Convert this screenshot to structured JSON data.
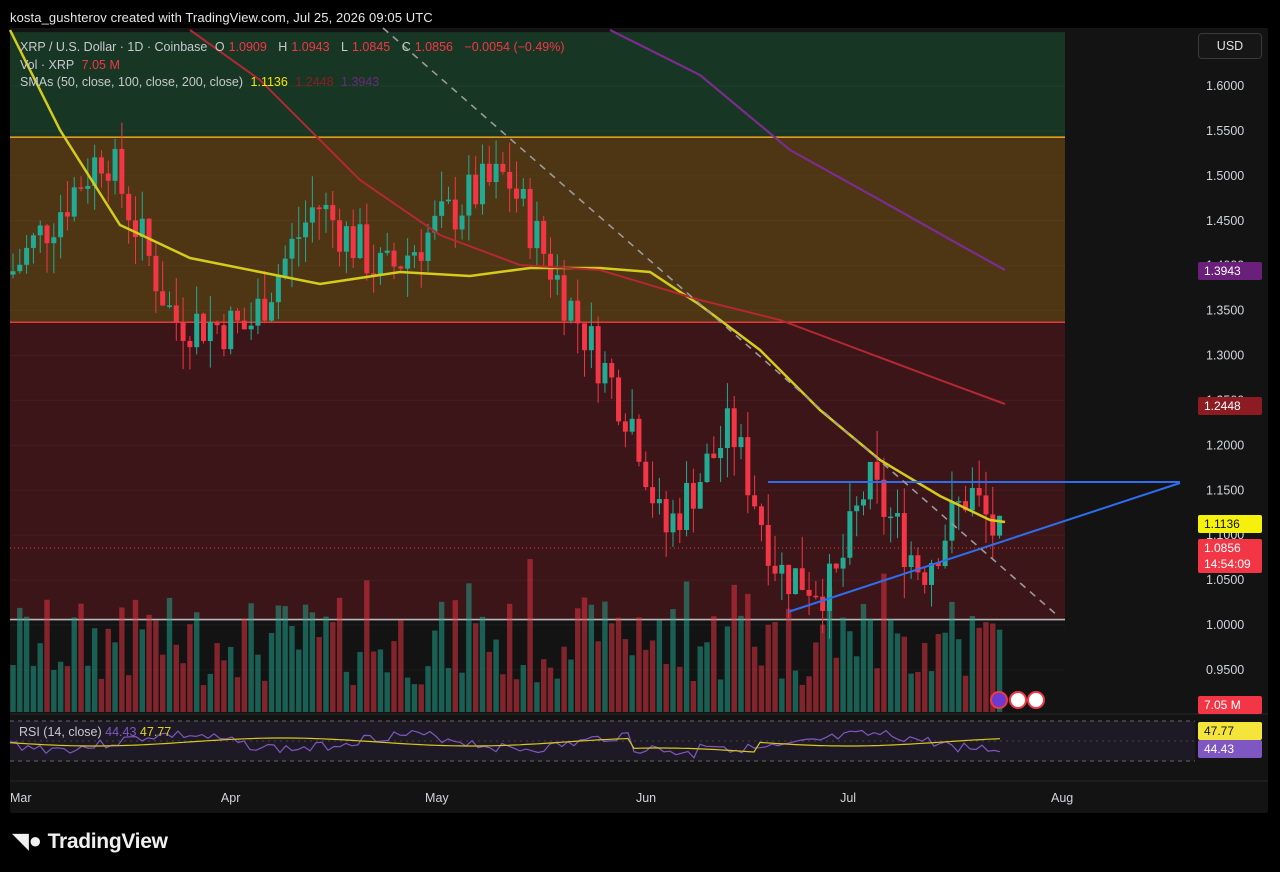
{
  "credit": "kosta_gushterov created with TradingView.com, Jul 25, 2026 09:05 UTC",
  "legend": {
    "symbol": "XRP / U.S. Dollar · 1D · Coinbase",
    "o_label": "O",
    "o_value": "1.0909",
    "h_label": "H",
    "h_value": "1.0943",
    "l_label": "L",
    "l_value": "1.0845",
    "c_label": "C",
    "c_value": "1.0856",
    "change": "−0.0054 (−0.49%)",
    "vol_label": "Vol · XRP",
    "vol_value": "7.05 M",
    "sma_label": "SMAs (50, close, 100, close, 200, close)",
    "sma50_value": "1.1136",
    "sma100_value": "1.2448",
    "sma200_value": "1.3943"
  },
  "currency_button": "USD",
  "price_tags": {
    "sma200": "1.3943",
    "sma100": "1.2448",
    "sma50": "1.1136",
    "last": "1.0856",
    "countdown": "14:54:09",
    "volume": "7.05 M",
    "rsi_ma": "47.77",
    "rsi": "44.43"
  },
  "rsi_legend": {
    "label": "RSI (14, close)",
    "rsi": "44.43",
    "ma": "47.77"
  },
  "brand": "TradingView",
  "colors": {
    "up": "#22ab94",
    "down": "#f23645",
    "sma50": "#d4cc1a",
    "sma100": "#b22833",
    "sma200": "#7b2d8e",
    "trendline": "#2f6df0",
    "rsi": "#7e57c2",
    "rsi_ma": "#d8c61f"
  },
  "chart_data": {
    "type": "candlestick",
    "symbol": "XRP / U.S. Dollar",
    "timeframe": "1D",
    "x_ticks": [
      "Mar",
      "Apr",
      "May",
      "Jun",
      "Jul",
      "Aug"
    ],
    "y_ticks": [
      "1.6000",
      "1.5500",
      "1.5000",
      "1.4500",
      "1.4000",
      "1.3500",
      "1.3000",
      "1.2500",
      "1.2000",
      "1.1500",
      "1.1000",
      "1.0500",
      "1.0000",
      "0.9500"
    ],
    "ylim": [
      0.94,
      1.66
    ],
    "horizontal_levels": [
      {
        "price": 1.543,
        "color": "#e09a1c"
      },
      {
        "price": 1.337,
        "color": "#e23a3a"
      },
      {
        "price": 1.006,
        "color": "#b8b8b8"
      }
    ],
    "zones": [
      {
        "from": 1.543,
        "to": 1.66,
        "color": "green"
      },
      {
        "from": 1.337,
        "to": 1.543,
        "color": "orange"
      },
      {
        "from": 1.006,
        "to": 1.337,
        "color": "red"
      }
    ],
    "candles_close_path": [
      {
        "date": "2026-03-01",
        "close": 1.39
      },
      {
        "date": "2026-03-15",
        "close": 1.53
      },
      {
        "date": "2026-03-25",
        "close": 1.34
      },
      {
        "date": "2026-04-05",
        "close": 1.33
      },
      {
        "date": "2026-04-15",
        "close": 1.47
      },
      {
        "date": "2026-04-25",
        "close": 1.39
      },
      {
        "date": "2026-05-08",
        "close": 1.48
      },
      {
        "date": "2026-05-13",
        "close": 1.5
      },
      {
        "date": "2026-05-22",
        "close": 1.36
      },
      {
        "date": "2026-06-01",
        "close": 1.22
      },
      {
        "date": "2026-06-05",
        "close": 1.1
      },
      {
        "date": "2026-06-15",
        "close": 1.22
      },
      {
        "date": "2026-06-22",
        "close": 1.06
      },
      {
        "date": "2026-06-30",
        "close": 1.04
      },
      {
        "date": "2026-07-05",
        "close": 1.16
      },
      {
        "date": "2026-07-13",
        "close": 1.06
      },
      {
        "date": "2026-07-20",
        "close": 1.15
      },
      {
        "date": "2026-07-25",
        "close": 1.0856
      }
    ],
    "last": {
      "open": 1.0909,
      "high": 1.0943,
      "low": 1.0845,
      "close": 1.0856
    },
    "sma": {
      "sma50": 1.1136,
      "sma100": 1.2448,
      "sma200": 1.3943
    },
    "volume_last": "7.05 M",
    "rsi": {
      "period": 14,
      "value": 44.43,
      "ma": 47.77
    }
  }
}
